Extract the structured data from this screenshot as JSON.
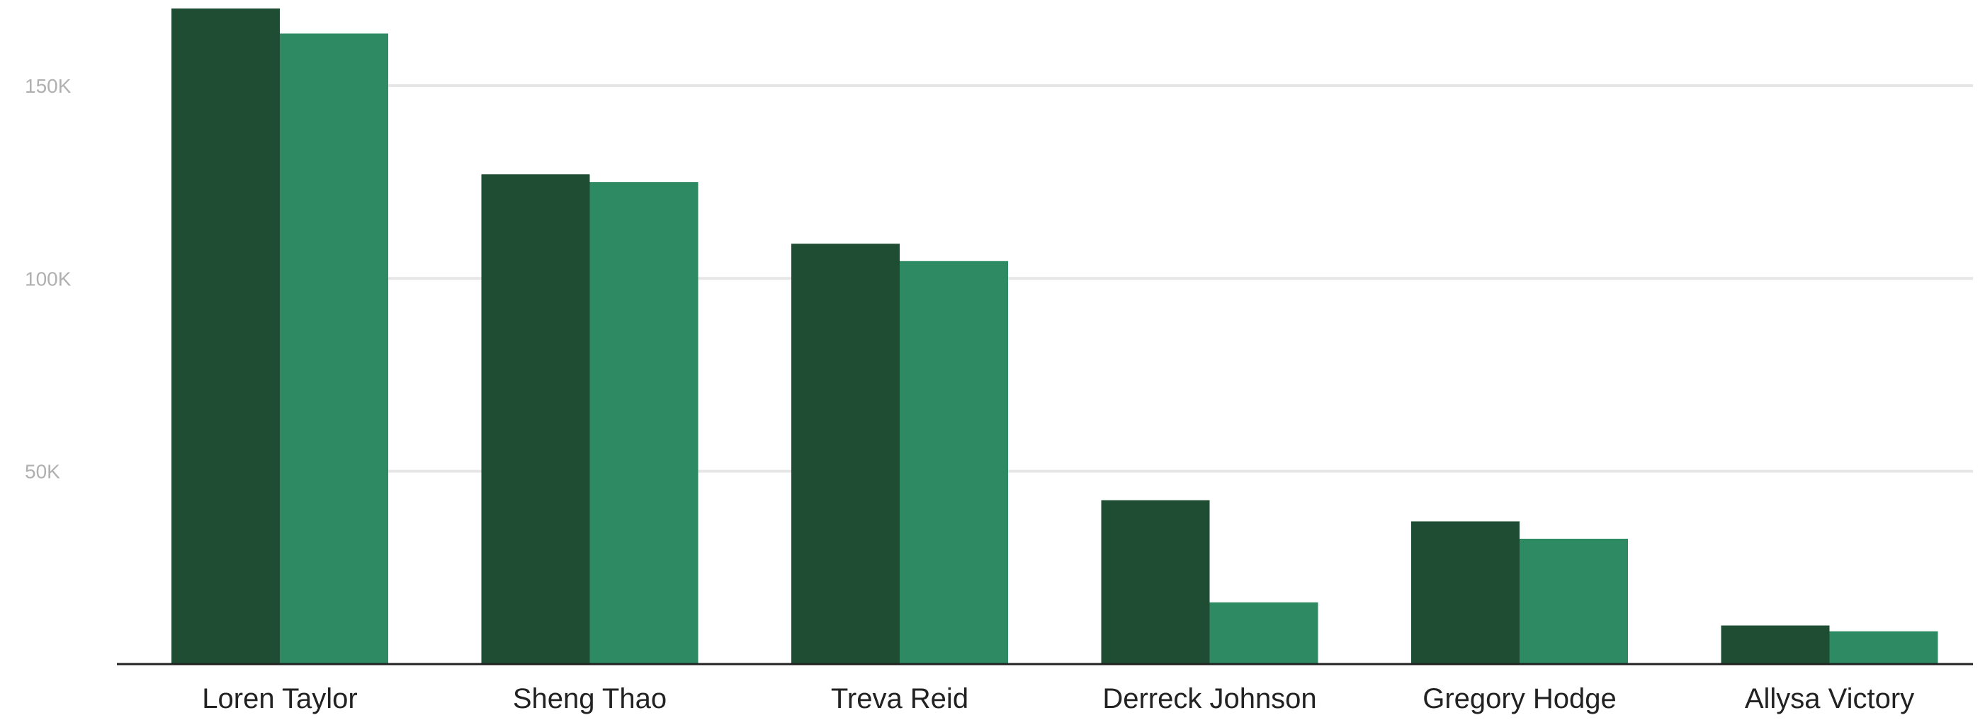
{
  "chart_data": {
    "type": "bar",
    "categories": [
      "Loren Taylor",
      "Sheng Thao",
      "Treva Reid",
      "Derreck Johnson",
      "Gregory Hodge",
      "Allysa Victory"
    ],
    "series": [
      {
        "values": [
          170000,
          127000,
          109000,
          42500,
          37000,
          10000
        ],
        "color": "#1f4d33"
      },
      {
        "values": [
          163500,
          125000,
          104500,
          16000,
          32500,
          8500
        ],
        "color": "#2e8a63"
      }
    ],
    "yticks": [
      50000,
      100000,
      150000
    ],
    "ytick_labels": [
      "50K",
      "100K",
      "150K"
    ],
    "ylim": [
      0,
      170000
    ],
    "grid": true
  }
}
